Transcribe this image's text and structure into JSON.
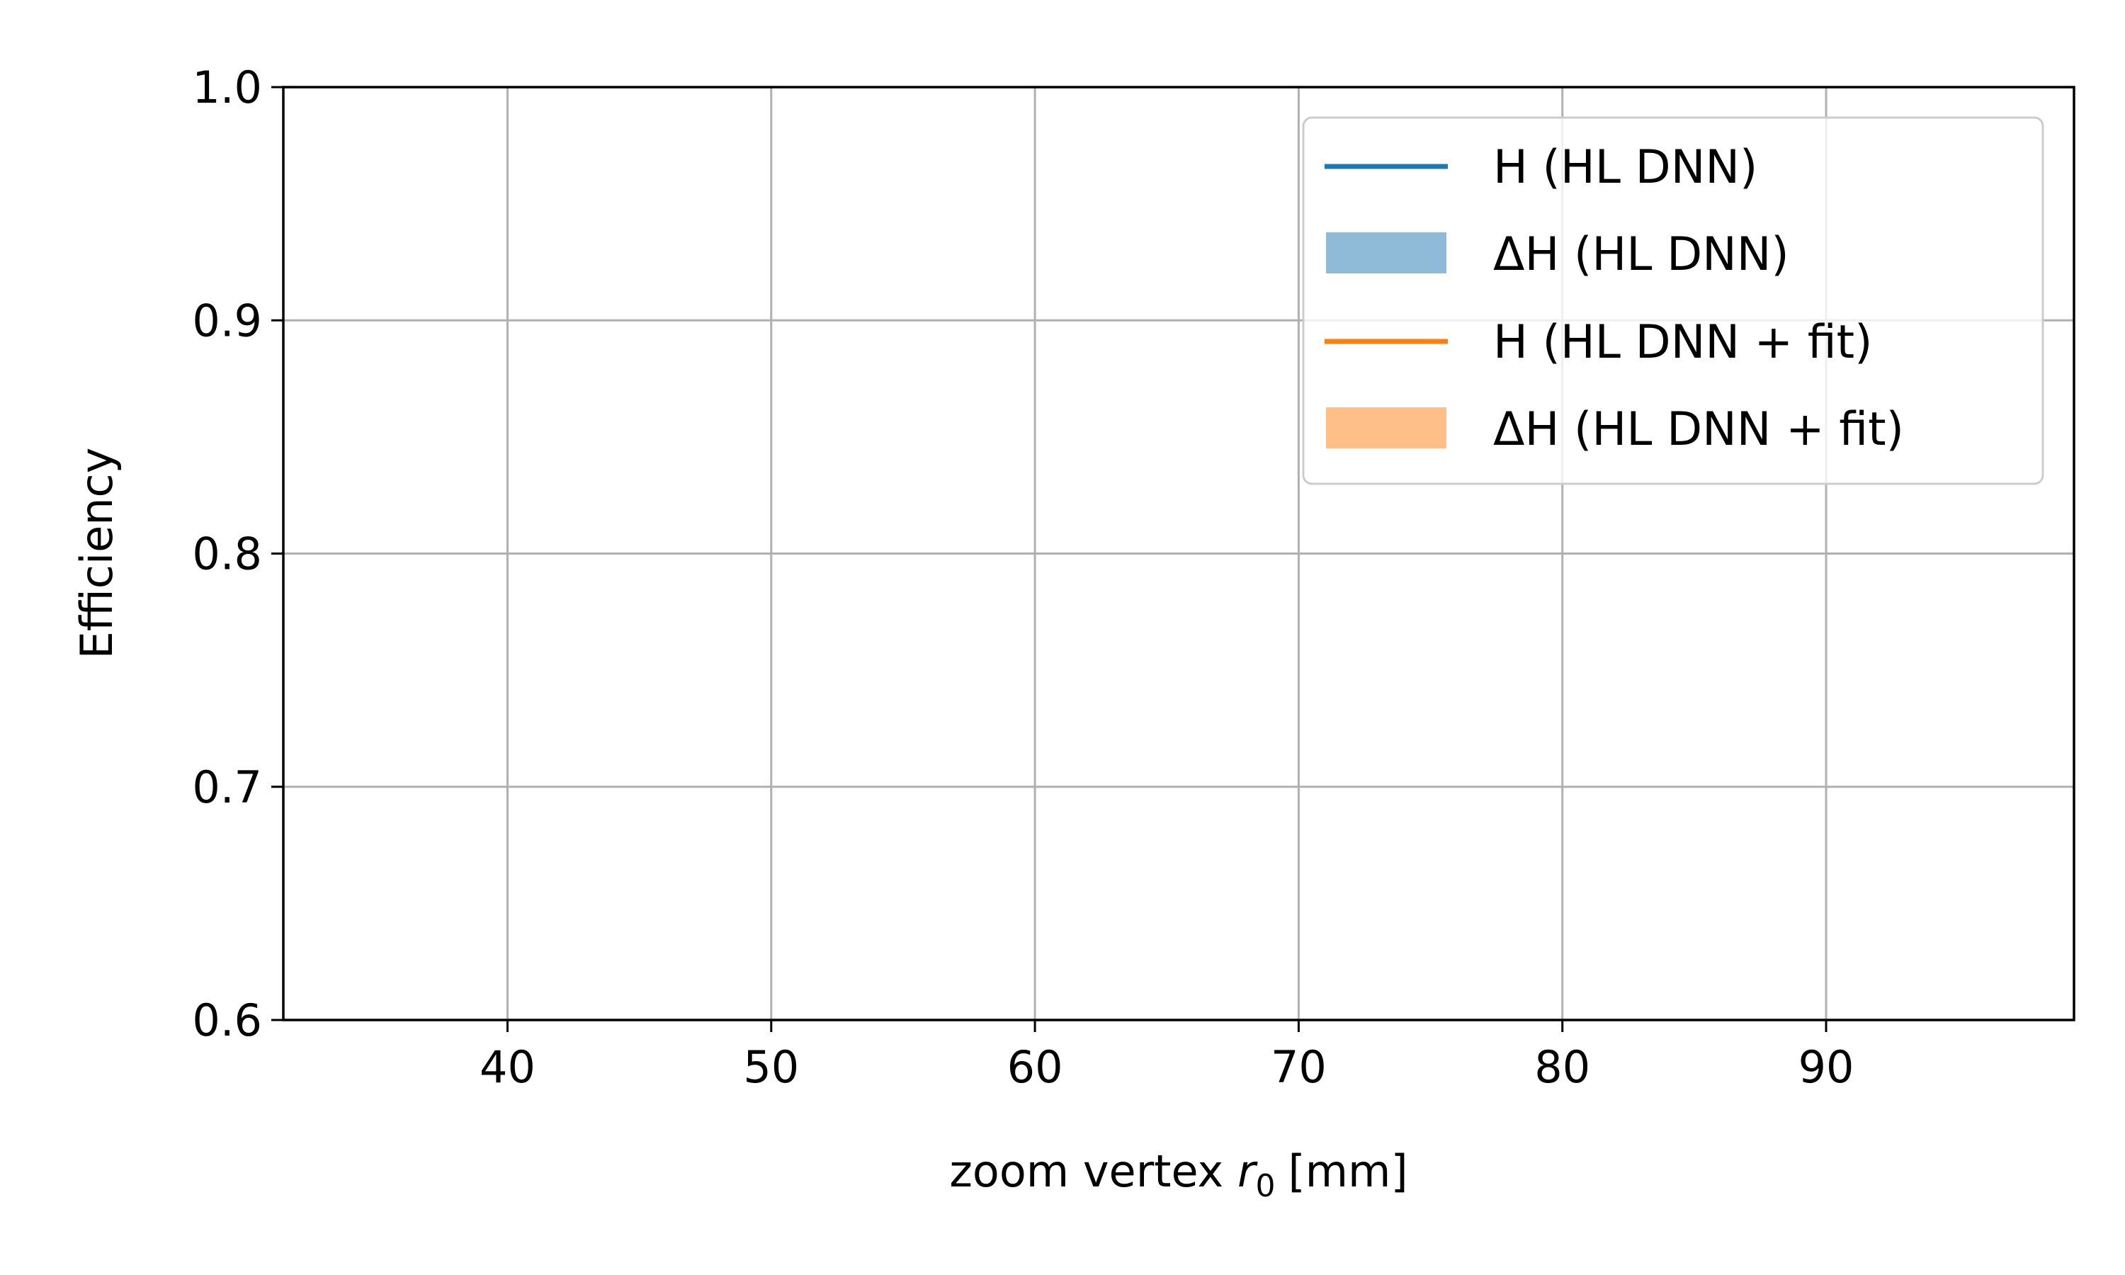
{
  "chart_data": {
    "type": "line",
    "xlabel": "zoom vertex",
    "xlabel_var": "r",
    "xlabel_sub": "0",
    "xlabel_unit": "[mm]",
    "ylabel": "Efficiency",
    "xlim": [
      31.5,
      99.4
    ],
    "ylim": [
      0.6,
      1.0
    ],
    "xticks": [
      40,
      50,
      60,
      70,
      80,
      90
    ],
    "yticks": [
      0.6,
      0.7,
      0.8,
      0.9,
      1.0
    ],
    "ytick_labels": [
      "0.6",
      "0.7",
      "0.8",
      "0.9",
      "1.0"
    ],
    "grid": true,
    "legend_position": "top-right",
    "series": [
      {
        "name": "H (HL DNN)",
        "kind": "line",
        "color": "#1f77b4",
        "x": [],
        "y": []
      },
      {
        "name": "ΔH (HL DNN)",
        "kind": "band",
        "color": "#1f77b4",
        "alpha": 0.5,
        "x": [],
        "y_low": [],
        "y_high": []
      },
      {
        "name": "H (HL DNN + fit)",
        "kind": "line",
        "color": "#ff7f0e",
        "x": [],
        "y": []
      },
      {
        "name": "ΔH (HL DNN + fit)",
        "kind": "band",
        "color": "#ff7f0e",
        "alpha": 0.5,
        "x": [],
        "y_low": [],
        "y_high": []
      }
    ]
  }
}
